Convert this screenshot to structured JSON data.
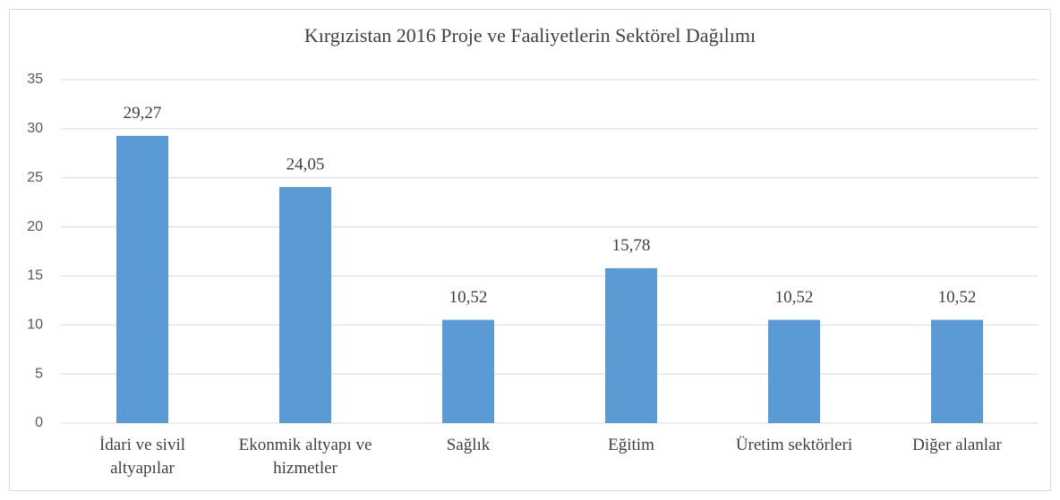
{
  "chart_data": {
    "type": "bar",
    "title": "Kırgızistan 2016 Proje ve Faaliyetlerin Sektörel Dağılımı",
    "categories": [
      "İdari ve sivil altyapılar",
      "Ekonmik altyapı ve hizmetler",
      "Sağlık",
      "Eğitim",
      "Üretim sektörleri",
      "Diğer alanlar"
    ],
    "values": [
      29.27,
      24.05,
      10.52,
      15.78,
      10.52,
      10.52
    ],
    "value_labels": [
      "29,27",
      "24,05",
      "10,52",
      "15,78",
      "10,52",
      "10,52"
    ],
    "color": "#5b9bd5",
    "ylim": [
      0,
      35
    ],
    "yticks": [
      0,
      5,
      10,
      15,
      20,
      25,
      30,
      35
    ],
    "grid": true
  }
}
